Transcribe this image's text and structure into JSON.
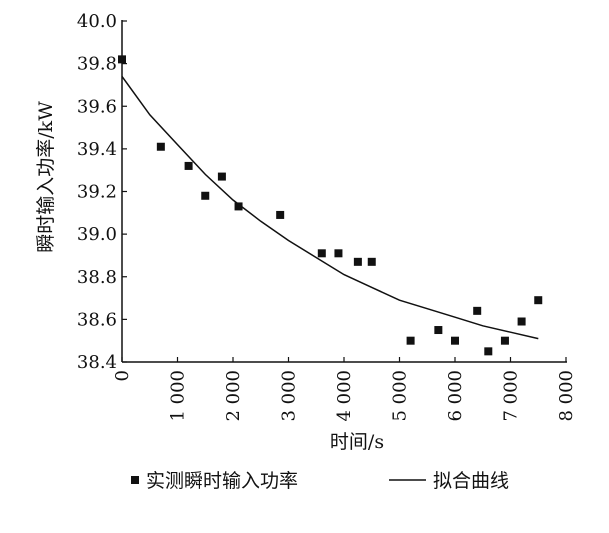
{
  "chart_data": {
    "type": "scatter",
    "title": "",
    "xlabel": "时间/s",
    "ylabel": "瞬时输入功率/kW",
    "xlim": [
      0,
      8000
    ],
    "ylim": [
      38.4,
      40.0
    ],
    "x_ticks": [
      0,
      1000,
      2000,
      3000,
      4000,
      5000,
      6000,
      7000,
      8000
    ],
    "x_tick_labels": [
      "0",
      "1 000",
      "2 000",
      "3 000",
      "4 000",
      "5 000",
      "6 000",
      "7 000",
      "8 000"
    ],
    "y_ticks": [
      38.4,
      38.6,
      38.8,
      39.0,
      39.2,
      39.4,
      39.6,
      39.8,
      40.0
    ],
    "y_tick_labels": [
      "38.4",
      "38.6",
      "38.8",
      "39.0",
      "39.2",
      "39.4",
      "39.6",
      "39.8",
      "40.0"
    ],
    "grid": false,
    "legend_position": "bottom",
    "series": [
      {
        "name": "实测瞬时输入功率",
        "kind": "scatter",
        "marker": "square",
        "color": "#111111",
        "points": [
          {
            "x": 0,
            "y": 39.82
          },
          {
            "x": 700,
            "y": 39.41
          },
          {
            "x": 1200,
            "y": 39.32
          },
          {
            "x": 1500,
            "y": 39.18
          },
          {
            "x": 1800,
            "y": 39.27
          },
          {
            "x": 2100,
            "y": 39.13
          },
          {
            "x": 2850,
            "y": 39.09
          },
          {
            "x": 3600,
            "y": 38.91
          },
          {
            "x": 3900,
            "y": 38.91
          },
          {
            "x": 4250,
            "y": 38.87
          },
          {
            "x": 4500,
            "y": 38.87
          },
          {
            "x": 5200,
            "y": 38.5
          },
          {
            "x": 5700,
            "y": 38.55
          },
          {
            "x": 6000,
            "y": 38.5
          },
          {
            "x": 6400,
            "y": 38.64
          },
          {
            "x": 6600,
            "y": 38.45
          },
          {
            "x": 6900,
            "y": 38.5
          },
          {
            "x": 7200,
            "y": 38.59
          },
          {
            "x": 7500,
            "y": 38.69
          }
        ]
      },
      {
        "name": "拟合曲线",
        "kind": "line",
        "color": "#111111",
        "points": [
          {
            "x": 0,
            "y": 39.74
          },
          {
            "x": 500,
            "y": 39.56
          },
          {
            "x": 1000,
            "y": 39.42
          },
          {
            "x": 1500,
            "y": 39.28
          },
          {
            "x": 2000,
            "y": 39.16
          },
          {
            "x": 2500,
            "y": 39.06
          },
          {
            "x": 3000,
            "y": 38.97
          },
          {
            "x": 3500,
            "y": 38.89
          },
          {
            "x": 4000,
            "y": 38.81
          },
          {
            "x": 4500,
            "y": 38.75
          },
          {
            "x": 5000,
            "y": 38.69
          },
          {
            "x": 5500,
            "y": 38.65
          },
          {
            "x": 6000,
            "y": 38.61
          },
          {
            "x": 6500,
            "y": 38.57
          },
          {
            "x": 7000,
            "y": 38.54
          },
          {
            "x": 7500,
            "y": 38.51
          }
        ]
      }
    ]
  }
}
